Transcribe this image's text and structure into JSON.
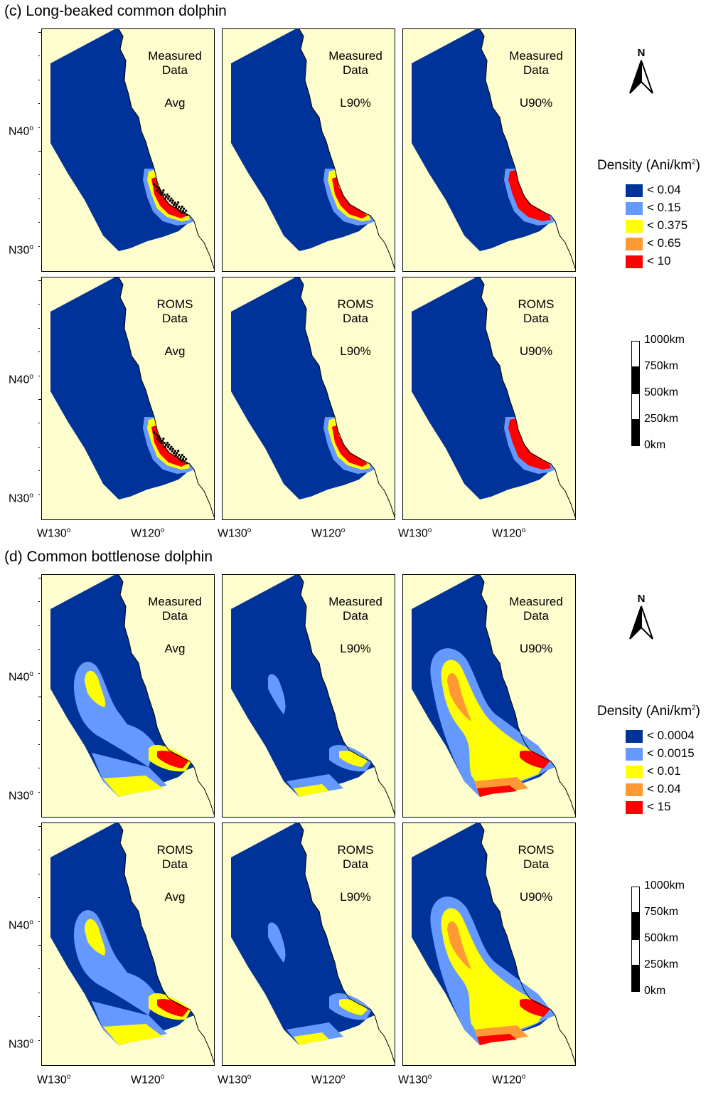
{
  "sections": [
    {
      "id": "c",
      "title": "(c)  Long-beaked common dolphin",
      "legend_title_prefix": "Density (Ani/km",
      "legend_title_sup": "2",
      "legend_title_suffix": ")",
      "legend": [
        {
          "label": "< 0.04",
          "color": "#003399"
        },
        {
          "label": "< 0.15",
          "color": "#6699ff"
        },
        {
          "label": "< 0.375",
          "color": "#ffff00"
        },
        {
          "label": "< 0.65",
          "color": "#ff9933"
        },
        {
          "label": "< 10",
          "color": "#ff0000"
        }
      ],
      "rows": [
        {
          "source": [
            "Measured",
            "Data"
          ],
          "panels": [
            "Avg",
            "L90%",
            "U90%"
          ]
        },
        {
          "source": [
            "ROMS",
            "Data"
          ],
          "panels": [
            "Avg",
            "L90%",
            "U90%"
          ]
        }
      ]
    },
    {
      "id": "d",
      "title": "(d)  Common bottlenose dolphin",
      "legend_title_prefix": "Density (Ani/km",
      "legend_title_sup": "2",
      "legend_title_suffix": ")",
      "legend": [
        {
          "label": "< 0.0004",
          "color": "#003399"
        },
        {
          "label": "< 0.0015",
          "color": "#6699ff"
        },
        {
          "label": "< 0.01",
          "color": "#ffff00"
        },
        {
          "label": "< 0.04",
          "color": "#ff9933"
        },
        {
          "label": "< 15",
          "color": "#ff0000"
        }
      ],
      "rows": [
        {
          "source": [
            "Measured",
            "Data"
          ],
          "panels": [
            "Avg",
            "L90%",
            "U90%"
          ]
        },
        {
          "source": [
            "ROMS",
            "Data"
          ],
          "panels": [
            "Avg",
            "L90%",
            "U90%"
          ]
        }
      ]
    }
  ],
  "lat_labels": [
    {
      "base": "N40",
      "sup": "o"
    },
    {
      "base": "N30",
      "sup": "o"
    }
  ],
  "lon_labels": [
    {
      "base": "W130",
      "sup": "o"
    },
    {
      "base": "W120",
      "sup": "o"
    }
  ],
  "north_label": "N",
  "scale_labels": [
    "1000km",
    "750km",
    "500km",
    "250km",
    "0km"
  ],
  "colors": {
    "ocean_low": "#003399",
    "low_mid": "#6699ff",
    "mid": "#ffff00",
    "high": "#ff9933",
    "very_high": "#ff0000",
    "land": "#fdfdcd"
  }
}
